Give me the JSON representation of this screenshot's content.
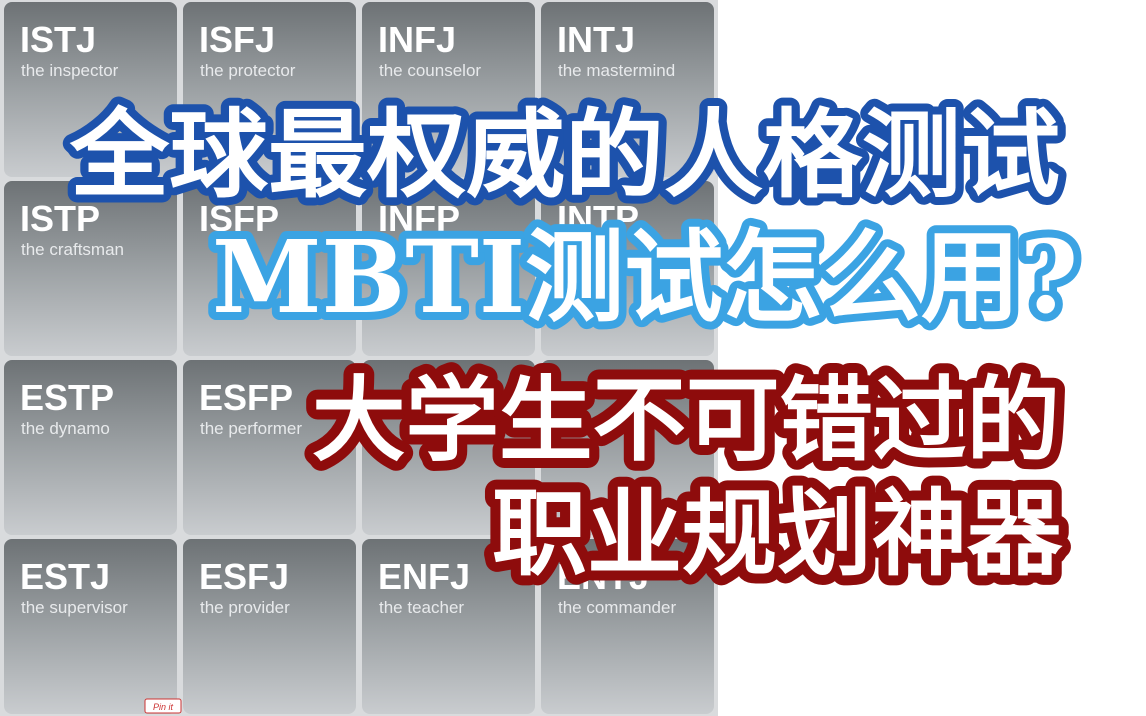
{
  "tiles": [
    {
      "type": "ISTJ",
      "subtitle": "the inspector"
    },
    {
      "type": "ISFJ",
      "subtitle": "the protector"
    },
    {
      "type": "INFJ",
      "subtitle": "the counselor"
    },
    {
      "type": "INTJ",
      "subtitle": "the mastermind"
    },
    {
      "type": "ISTP",
      "subtitle": "the craftsman"
    },
    {
      "type": "ISFP"
    },
    {
      "type": "INFP"
    },
    {
      "type": "INTP"
    },
    {
      "type": "ESTP",
      "subtitle": "the dynamo"
    },
    {
      "type": "ESFP",
      "subtitle": "the performer"
    },
    {},
    {},
    {
      "type": "ESTJ",
      "subtitle": "the supervisor"
    },
    {
      "type": "ESFJ",
      "subtitle": "the provider"
    },
    {
      "type": "ENFJ",
      "subtitle": "the teacher"
    },
    {
      "type": "ENTJ",
      "subtitle": "the commander"
    }
  ],
  "pin_label": "Pin it",
  "headline": [
    "全球最权威的人格测试",
    "MBTI测试怎么用?",
    "大学生不可错过的",
    "职业规划神器"
  ]
}
